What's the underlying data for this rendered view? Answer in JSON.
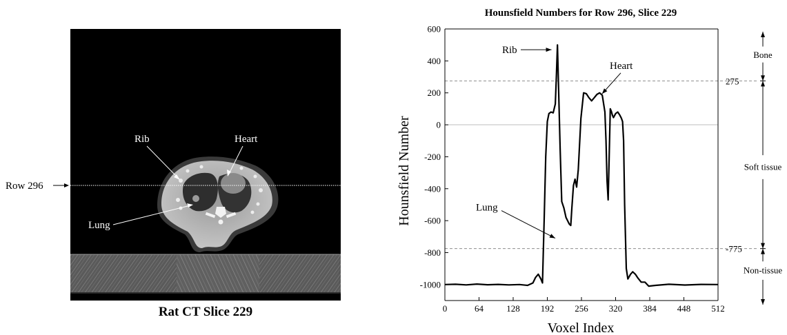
{
  "left_panel": {
    "caption": "Rat CT Slice 229",
    "row_label": "Row 296",
    "labels": {
      "rib": "Rib",
      "heart": "Heart",
      "lung": "Lung"
    }
  },
  "chart_data": {
    "type": "line",
    "title": "Hounsfield Numbers for Row 296, Slice 229",
    "xlabel": "Voxel Index",
    "ylabel": "Hounsfield Number",
    "xlim": [
      0,
      512
    ],
    "ylim": [
      -1100,
      600
    ],
    "x_ticks": [
      0,
      64,
      128,
      192,
      256,
      320,
      384,
      448,
      512
    ],
    "y_ticks": [
      600,
      400,
      200,
      0,
      -200,
      -400,
      -600,
      -800,
      -1000
    ],
    "grid": false,
    "reference_lines": [
      {
        "value": 275,
        "style": "dashed",
        "label": "275"
      },
      {
        "value": 0,
        "style": "solid"
      },
      {
        "value": -775,
        "style": "dashed",
        "label": "-775"
      }
    ],
    "annotations": [
      {
        "text": "Rib",
        "x": 205,
        "y": 500
      },
      {
        "text": "Heart",
        "x": 292,
        "y": 185
      },
      {
        "text": "Lung",
        "x": 225,
        "y": -710
      }
    ],
    "ranges": [
      {
        "name": "Bone",
        "from": 600,
        "to": 275
      },
      {
        "name": "Soft tissue",
        "from": 275,
        "to": -775
      },
      {
        "name": "Non-tissue",
        "from": -775,
        "to": -1100
      }
    ],
    "series": [
      {
        "x": [
          0,
          20,
          40,
          60,
          80,
          100,
          120,
          140,
          155,
          165,
          170,
          175,
          180,
          183,
          186,
          189,
          192,
          195,
          199,
          203,
          207,
          209,
          211,
          213,
          216,
          219,
          223,
          227,
          230,
          233,
          236,
          238,
          241,
          244,
          247,
          250,
          255,
          260,
          265,
          270,
          275,
          280,
          285,
          290,
          295,
          300,
          302,
          304,
          306,
          308,
          310,
          312,
          314,
          316,
          320,
          324,
          328,
          331,
          333,
          335,
          337,
          340,
          343,
          348,
          352,
          357,
          362,
          368,
          375,
          382,
          395,
          420,
          450,
          480,
          512
        ],
        "y": [
          -1000,
          -998,
          -1002,
          -997,
          -1001,
          -999,
          -1002,
          -1000,
          -1005,
          -990,
          -955,
          -935,
          -965,
          -990,
          -600,
          -200,
          20,
          70,
          80,
          75,
          130,
          300,
          500,
          250,
          -150,
          -480,
          -520,
          -580,
          -600,
          -620,
          -630,
          -520,
          -380,
          -340,
          -390,
          -280,
          40,
          200,
          195,
          170,
          150,
          170,
          190,
          200,
          185,
          80,
          -100,
          -350,
          -470,
          -200,
          100,
          85,
          60,
          45,
          70,
          80,
          60,
          40,
          20,
          -100,
          -500,
          -900,
          -965,
          -935,
          -920,
          -935,
          -960,
          -985,
          -985,
          -1010,
          -1005,
          -998,
          -1003,
          -999,
          -1000
        ]
      }
    ]
  }
}
